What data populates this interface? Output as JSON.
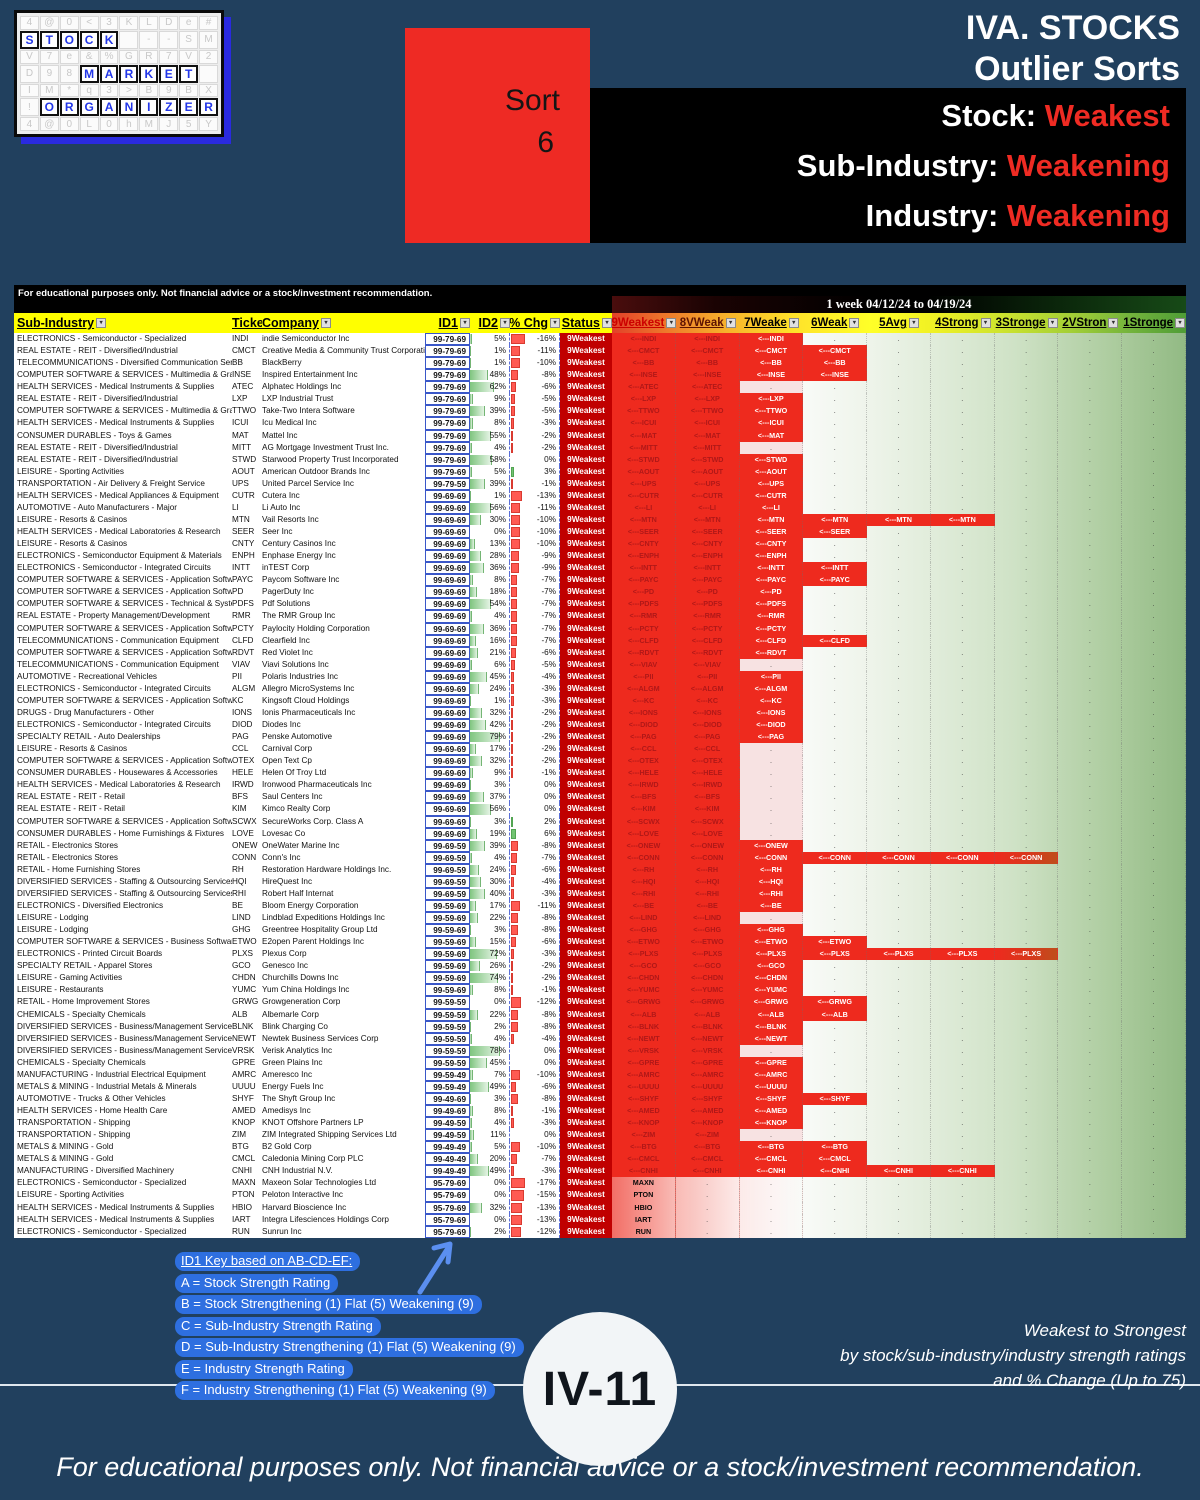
{
  "logo": {
    "faint_rows": [
      "4@0<3KLDe#",
      "      --SM",
      "V7e&%GR7V2",
      "D98       ",
      "IM*q3>B9BX",
      "!         ",
      "4@0L0hMJ5Y"
    ],
    "words": [
      {
        "row": 1,
        "col": 0,
        "text": "STOCK"
      },
      {
        "row": 3,
        "col": 3,
        "text": "MARKET"
      },
      {
        "row": 5,
        "col": 1,
        "text": "ORGANIZER"
      }
    ]
  },
  "sort_card": {
    "label": "Sort",
    "number": "6"
  },
  "title": {
    "line1": "IVA. STOCKS",
    "line2": "Outlier Sorts"
  },
  "subtitle": [
    {
      "label": "Stock:",
      "value": "Weakest"
    },
    {
      "label": "Sub-Industry:",
      "value": "Weakening"
    },
    {
      "label": "Industry:",
      "value": "Weakening"
    }
  ],
  "sheet": {
    "disclaimer": "For educational purposes only. Not financial advice or a stock/investment recommendation.",
    "period_banner": "1 week 04/12/24 to 04/19/24",
    "left_headers": [
      "Sub-Industry",
      "Ticker",
      "Company",
      "ID1",
      "ID2",
      "% Chg",
      "Status"
    ],
    "rating_headers": [
      "9Weakest",
      "8VWeak",
      "7Weake",
      "6Weak",
      "5Avg",
      "4Strong",
      "3Stronge",
      "2VStron",
      "1Stronge"
    ],
    "status_value": "9Weakest",
    "arrow_prefix": "<---",
    "rows": [
      [
        "ELECTRONICS - Semiconductor - Specialized",
        "INDI",
        "indie Semiconductor Inc",
        "99-79-69",
        5,
        -16,
        3
      ],
      [
        "REAL ESTATE - REIT - Diversified/Industrial",
        "CMCT",
        "Creative Media & Community Trust Corporati",
        "99-79-69",
        1,
        -11,
        4
      ],
      [
        "TELECOMMUNICATIONS - Diversified Communication Sen",
        "BB",
        "BlackBerry",
        "99-79-69",
        1,
        -10,
        4
      ],
      [
        "COMPUTER SOFTWARE & SERVICES - Multimedia & Graph",
        "INSE",
        "Inspired Entertainment Inc",
        "99-79-69",
        48,
        -8,
        4
      ],
      [
        "HEALTH SERVICES - Medical Instruments & Supplies",
        "ATEC",
        "Alphatec Holdings Inc",
        "99-79-69",
        62,
        -6,
        2
      ],
      [
        "REAL ESTATE - REIT - Diversified/Industrial",
        "LXP",
        "LXP Industrial Trust",
        "99-79-69",
        9,
        -5,
        3
      ],
      [
        "COMPUTER SOFTWARE & SERVICES - Multimedia & Graph",
        "TTWO",
        "Take-Two Intera Software",
        "99-79-69",
        39,
        -5,
        3
      ],
      [
        "HEALTH SERVICES - Medical Instruments & Supplies",
        "ICUI",
        "Icu Medical Inc",
        "99-79-69",
        8,
        -3,
        3
      ],
      [
        "CONSUMER DURABLES - Toys & Games",
        "MAT",
        "Mattel Inc",
        "99-79-69",
        55,
        -2,
        3
      ],
      [
        "REAL ESTATE - REIT - Diversified/Industrial",
        "MITT",
        "AG Mortgage Investment Trust Inc.",
        "99-79-69",
        4,
        -2,
        2
      ],
      [
        "REAL ESTATE - REIT - Diversified/Industrial",
        "STWD",
        "Starwood Property Trust Incorporated",
        "99-79-69",
        58,
        0,
        3
      ],
      [
        "LEISURE - Sporting Activities",
        "AOUT",
        "American Outdoor Brands Inc",
        "99-79-69",
        5,
        3,
        3
      ],
      [
        "TRANSPORTATION - Air Delivery & Freight Service",
        "UPS",
        "United Parcel Service Inc",
        "99-79-59",
        39,
        -1,
        3
      ],
      [
        "HEALTH SERVICES - Medical Appliances & Equipment",
        "CUTR",
        "Cutera Inc",
        "99-69-69",
        1,
        -13,
        3
      ],
      [
        "AUTOMOTIVE - Auto Manufacturers - Major",
        "LI",
        "Li Auto Inc",
        "99-69-69",
        56,
        -11,
        3
      ],
      [
        "LEISURE - Resorts & Casinos",
        "MTN",
        "Vail Resorts Inc",
        "99-69-69",
        30,
        -10,
        6
      ],
      [
        "HEALTH SERVICES - Medical Laboratories & Research",
        "SEER",
        "Seer Inc",
        "99-69-69",
        0,
        -10,
        4
      ],
      [
        "LEISURE - Resorts & Casinos",
        "CNTY",
        "Century Casinos Inc",
        "99-69-69",
        13,
        -10,
        3
      ],
      [
        "ELECTRONICS - Semiconductor Equipment & Materials",
        "ENPH",
        "Enphase Energy Inc",
        "99-69-69",
        28,
        -9,
        3
      ],
      [
        "ELECTRONICS - Semiconductor - Integrated Circuits",
        "INTT",
        "inTEST Corp",
        "99-69-69",
        36,
        -9,
        4
      ],
      [
        "COMPUTER SOFTWARE & SERVICES - Application Softwar",
        "PAYC",
        "Paycom Software Inc",
        "99-69-69",
        8,
        -7,
        4
      ],
      [
        "COMPUTER SOFTWARE & SERVICES - Application Softwar",
        "PD",
        "PagerDuty Inc",
        "99-69-69",
        18,
        -7,
        3
      ],
      [
        "COMPUTER SOFTWARE & SERVICES - Technical & System",
        "PDFS",
        "Pdf Solutions",
        "99-69-69",
        54,
        -7,
        3
      ],
      [
        "REAL ESTATE - Property Management/Development",
        "RMR",
        "The RMR Group Inc",
        "99-69-69",
        4,
        -7,
        3
      ],
      [
        "COMPUTER SOFTWARE & SERVICES - Application Softwar",
        "PCTY",
        "Paylocity Holding Corporation",
        "99-69-69",
        36,
        -7,
        3
      ],
      [
        "TELECOMMUNICATIONS - Communication Equipment",
        "CLFD",
        "Clearfield Inc",
        "99-69-69",
        16,
        -7,
        4
      ],
      [
        "COMPUTER SOFTWARE & SERVICES - Application Softwar",
        "RDVT",
        "Red Violet Inc",
        "99-69-69",
        21,
        -6,
        3
      ],
      [
        "TELECOMMUNICATIONS - Communication Equipment",
        "VIAV",
        "Viavi Solutions Inc",
        "99-69-69",
        6,
        -5,
        2
      ],
      [
        "AUTOMOTIVE - Recreational Vehicles",
        "PII",
        "Polaris Industries Inc",
        "99-69-69",
        45,
        -4,
        3
      ],
      [
        "ELECTRONICS - Semiconductor - Integrated Circuits",
        "ALGM",
        "Allegro MicroSystems Inc",
        "99-69-69",
        24,
        -3,
        3
      ],
      [
        "COMPUTER SOFTWARE & SERVICES - Application Softwar",
        "KC",
        "Kingsoft Cloud Holdings",
        "99-69-69",
        1,
        -3,
        3
      ],
      [
        "DRUGS - Drug Manufacturers - Other",
        "IONS",
        "Ionis Pharmaceuticals Inc",
        "99-69-69",
        32,
        -2,
        3
      ],
      [
        "ELECTRONICS - Semiconductor - Integrated Circuits",
        "DIOD",
        "Diodes Inc",
        "99-69-69",
        42,
        -2,
        3
      ],
      [
        "SPECIALTY RETAIL - Auto Dealerships",
        "PAG",
        "Penske Automotive",
        "99-69-69",
        79,
        -2,
        3
      ],
      [
        "LEISURE - Resorts & Casinos",
        "CCL",
        "Carnival Corp",
        "99-69-69",
        17,
        -2,
        2
      ],
      [
        "COMPUTER SOFTWARE & SERVICES - Application Softwar",
        "OTEX",
        "Open Text Cp",
        "99-69-69",
        32,
        -2,
        2
      ],
      [
        "CONSUMER DURABLES - Housewares & Accessories",
        "HELE",
        "Helen Of Troy Ltd",
        "99-69-69",
        9,
        -1,
        2
      ],
      [
        "HEALTH SERVICES - Medical Laboratories & Research",
        "IRWD",
        "Ironwood Pharmaceuticals Inc",
        "99-69-69",
        3,
        0,
        2
      ],
      [
        "REAL ESTATE - REIT - Retail",
        "BFS",
        "Saul Centers Inc",
        "99-69-69",
        37,
        0,
        2
      ],
      [
        "REAL ESTATE - REIT - Retail",
        "KIM",
        "Kimco Realty Corp",
        "99-69-69",
        56,
        0,
        2
      ],
      [
        "COMPUTER SOFTWARE & SERVICES - Application Softwar",
        "SCWX",
        "SecureWorks Corp. Class A",
        "99-69-69",
        3,
        2,
        2
      ],
      [
        "CONSUMER DURABLES - Home Furnishings & Fixtures",
        "LOVE",
        "Lovesac Co",
        "99-69-69",
        19,
        6,
        2
      ],
      [
        "RETAIL - Electronics Stores",
        "ONEW",
        "OneWater Marine Inc",
        "99-69-59",
        39,
        -8,
        3
      ],
      [
        "RETAIL - Electronics Stores",
        "CONN",
        "Conn's Inc",
        "99-69-59",
        4,
        -7,
        7
      ],
      [
        "RETAIL - Home Furnishing Stores",
        "RH",
        "Restoration Hardware Holdings Inc.",
        "99-69-59",
        24,
        -6,
        3
      ],
      [
        "DIVERSIFIED SERVICES - Staffing & Outsourcing Services",
        "HQI",
        "HireQuest Inc",
        "99-69-59",
        30,
        -4,
        3
      ],
      [
        "DIVERSIFIED SERVICES - Staffing & Outsourcing Services",
        "RHI",
        "Robert Half Internat",
        "99-69-59",
        40,
        -3,
        3
      ],
      [
        "ELECTRONICS - Diversified Electronics",
        "BE",
        "Bloom Energy Corporation",
        "99-59-69",
        17,
        -11,
        3
      ],
      [
        "LEISURE - Lodging",
        "LIND",
        "Lindblad Expeditions Holdings Inc",
        "99-59-69",
        22,
        -8,
        2
      ],
      [
        "LEISURE - Lodging",
        "GHG",
        "Greentree Hospitality Group Ltd",
        "99-59-69",
        3,
        -8,
        3
      ],
      [
        "COMPUTER SOFTWARE & SERVICES - Business Software &",
        "ETWO",
        "E2open Parent Holdings Inc",
        "99-59-69",
        15,
        -6,
        4
      ],
      [
        "ELECTRONICS - Printed Circuit Boards",
        "PLXS",
        "Plexus Corp",
        "99-59-69",
        72,
        -3,
        7
      ],
      [
        "SPECIALTY RETAIL - Apparel Stores",
        "GCO",
        "Genesco Inc",
        "99-59-69",
        26,
        -2,
        3
      ],
      [
        "LEISURE - Gaming Activities",
        "CHDN",
        "Churchills Downs Inc",
        "99-59-69",
        74,
        -2,
        3
      ],
      [
        "LEISURE - Restaurants",
        "YUMC",
        "Yum China Holdings Inc",
        "99-59-69",
        8,
        -1,
        3
      ],
      [
        "RETAIL - Home Improvement Stores",
        "GRWG",
        "Growgeneration Corp",
        "99-59-59",
        0,
        -12,
        4
      ],
      [
        "CHEMICALS - Specialty Chemicals",
        "ALB",
        "Albemarle Corp",
        "99-59-59",
        22,
        -8,
        4
      ],
      [
        "DIVERSIFIED SERVICES - Business/Management Services",
        "BLNK",
        "Blink Charging Co",
        "99-59-59",
        2,
        -8,
        3
      ],
      [
        "DIVERSIFIED SERVICES - Business/Management Services",
        "NEWT",
        "Newtek Business Services Corp",
        "99-59-59",
        4,
        -4,
        3
      ],
      [
        "DIVERSIFIED SERVICES - Business/Management Services",
        "VRSK",
        "Verisk Analytics Inc",
        "99-59-59",
        78,
        0,
        2
      ],
      [
        "CHEMICALS - Specialty Chemicals",
        "GPRE",
        "Green Plains Inc",
        "99-59-59",
        45,
        0,
        3
      ],
      [
        "MANUFACTURING - Industrial Electrical Equipment",
        "AMRC",
        "Ameresco Inc",
        "99-59-49",
        7,
        -10,
        3
      ],
      [
        "METALS & MINING - Industrial Metals & Minerals",
        "UUUU",
        "Energy Fuels Inc",
        "99-59-49",
        49,
        -6,
        3
      ],
      [
        "AUTOMOTIVE - Trucks & Other Vehicles",
        "SHYF",
        "The Shyft Group Inc",
        "99-49-69",
        3,
        -8,
        4
      ],
      [
        "HEALTH SERVICES - Home Health Care",
        "AMED",
        "Amedisys Inc",
        "99-49-69",
        8,
        -1,
        3
      ],
      [
        "TRANSPORTATION - Shipping",
        "KNOP",
        "KNOT Offshore Partners LP",
        "99-49-59",
        4,
        -3,
        3
      ],
      [
        "TRANSPORTATION - Shipping",
        "ZIM",
        "ZIM Integrated Shipping Services Ltd",
        "99-49-59",
        11,
        0,
        2
      ],
      [
        "METALS & MINING - Gold",
        "BTG",
        "B2 Gold Corp",
        "99-49-49",
        5,
        -10,
        4
      ],
      [
        "METALS & MINING - Gold",
        "CMCL",
        "Caledonia Mining Corp PLC",
        "99-49-49",
        20,
        -7,
        4
      ],
      [
        "MANUFACTURING - Diversified Machinery",
        "CNHI",
        "CNH Industrial N.V.",
        "99-49-49",
        49,
        -3,
        6
      ],
      [
        "ELECTRONICS - Semiconductor - Specialized",
        "MAXN",
        "Maxeon Solar Technologies Ltd",
        "95-79-69",
        0,
        -17,
        0
      ],
      [
        "LEISURE - Sporting Activities",
        "PTON",
        "Peloton Interactive Inc",
        "95-79-69",
        0,
        -15,
        0
      ],
      [
        "HEALTH SERVICES - Medical Instruments & Supplies",
        "HBIO",
        "Harvard Bioscience Inc",
        "95-79-69",
        32,
        -13,
        0
      ],
      [
        "HEALTH SERVICES - Medical Instruments & Supplies",
        "IART",
        "Integra Lifesciences Holdings Corp",
        "95-79-69",
        0,
        -13,
        0
      ],
      [
        "ELECTRONICS - Semiconductor - Specialized",
        "RUN",
        "Sunrun Inc",
        "95-79-69",
        2,
        -12,
        0
      ]
    ]
  },
  "legend": {
    "title": "ID1 Key based on AB-CD-EF:",
    "lines": [
      "A = Stock Strength Rating",
      "B = Stock Strengthening (1) Flat (5) Weakening (9)",
      "C = Sub-Industry Strength Rating",
      "D = Sub-Industry Strengthening (1) Flat (5) Weakening (9)",
      "E = Industry Strength Rating",
      "F = Industry Strengthening (1) Flat (5) Weakening (9)"
    ]
  },
  "page_label": "IV-11",
  "sort_note": [
    "Weakest to Strongest",
    "by stock/sub-industry/industry strength ratings",
    "and % Change (Up to 75)"
  ],
  "footer": "For educational purposes only. Not financial advice or a stock/investment recommendation.",
  "colors": {
    "background_navy": "#21405e",
    "accent_red": "#ee2a1e",
    "status_red": "#c00000",
    "header_yellow": "#ffff00",
    "key_pill_blue": "#2e6fe0",
    "subtitle_value_red": "#ef2b23"
  }
}
